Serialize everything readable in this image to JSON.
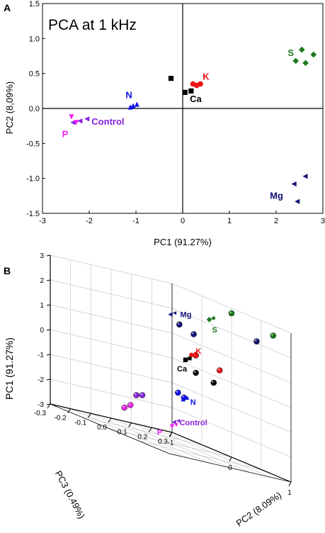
{
  "panels": {
    "a_label": "A",
    "b_label": "B"
  },
  "chart_data": [
    {
      "type": "scatter",
      "title": "PCA at 1 kHz",
      "xlabel": "PC1 (91.27%)",
      "ylabel": "PC2 (8,09%)",
      "xlim": [
        -3,
        3
      ],
      "ylim": [
        -1.5,
        1.5
      ],
      "xticks": [
        "-3",
        "-2",
        "-1",
        "0",
        "1",
        "2",
        "3"
      ],
      "yticks": [
        "-1.5",
        "-1.0",
        "-0.5",
        "0.0",
        "0.5",
        "1.0",
        "1.5"
      ],
      "grid": false,
      "series": [
        {
          "name": "S",
          "color": "#1a7a1a",
          "marker": "diamond",
          "points": [
            [
              2.42,
              0.68
            ],
            [
              2.55,
              0.84
            ],
            [
              2.63,
              0.65
            ],
            [
              2.8,
              0.77
            ]
          ]
        },
        {
          "name": "K",
          "color": "#ee1111",
          "marker": "circle",
          "points": [
            [
              0.22,
              0.35
            ],
            [
              0.3,
              0.33
            ],
            [
              0.38,
              0.35
            ]
          ]
        },
        {
          "name": "Ca",
          "color": "#000000",
          "marker": "square",
          "points": [
            [
              -0.25,
              0.43
            ],
            [
              0.05,
              0.23
            ],
            [
              0.18,
              0.25
            ]
          ]
        },
        {
          "name": "N",
          "color": "#1111ee",
          "marker": "triangle-up",
          "points": [
            [
              -1.12,
              0.02
            ],
            [
              -1.06,
              0.04
            ],
            [
              -0.98,
              0.06
            ]
          ]
        },
        {
          "name": "Control",
          "color": "#8822dd",
          "marker": "triangle-left",
          "points": [
            [
              -2.35,
              -0.2
            ],
            [
              -2.2,
              -0.18
            ],
            [
              -2.05,
              -0.15
            ]
          ]
        },
        {
          "name": "P",
          "color": "#ee22ee",
          "marker": "triangle-down",
          "points": [
            [
              -2.38,
              -0.12
            ],
            [
              -2.28,
              -0.2
            ]
          ]
        },
        {
          "name": "Mg",
          "color": "#111177",
          "marker": "triangle-left",
          "points": [
            [
              2.38,
              -1.08
            ],
            [
              2.45,
              -1.33
            ],
            [
              2.62,
              -0.97
            ]
          ]
        }
      ]
    },
    {
      "type": "scatter",
      "title": "",
      "xlabel": "PC3 (0.49%)",
      "ylabel": "PC1 (91.27%)",
      "zlabel": "PC2 (8.09%)",
      "pc1_range": [
        -3,
        3
      ],
      "pc3_range": [
        -0.3,
        0.3
      ],
      "pc2_range": [
        -1,
        1
      ],
      "pc1_ticks": [
        "-3",
        "-2",
        "-1",
        "0",
        "1",
        "2",
        "3"
      ],
      "pc3_ticks": [
        "-0.3",
        "-0.2",
        "-0.1",
        "0.0",
        "0.1",
        "0.2",
        "0.3"
      ],
      "pc2_ticks": [
        "-1",
        "0",
        "1"
      ],
      "grid": true,
      "series": [
        {
          "name": "Mg",
          "color": "#111177",
          "marker": "triangle-left",
          "points": [
            [
              -0.28,
              0.95,
              2.6
            ]
          ],
          "projections": [
            [
              -0.25,
              1.0,
              2.3
            ],
            [
              0.16,
              0.9,
              2.3
            ],
            [
              -0.15,
              0.9,
              2.0
            ]
          ]
        },
        {
          "name": "S",
          "color": "#1a7a1a",
          "marker": "diamond",
          "points": [
            [
              -0.05,
              0.82,
              2.7
            ]
          ],
          "projections": [
            [
              0.3,
              0.0,
              2.8
            ],
            [
              0.3,
              0.7,
              2.6
            ]
          ]
        },
        {
          "name": "K",
          "color": "#ee1111",
          "marker": "circle",
          "points": [
            [
              0.0,
              0.35,
              0.9
            ]
          ],
          "projections": [
            [
              0.3,
              -0.6,
              0.5
            ],
            [
              0.3,
              -0.2,
              0.3
            ]
          ]
        },
        {
          "name": "Ca",
          "color": "#000000",
          "marker": "square",
          "points": [
            [
              0.0,
              0.25,
              0.6
            ]
          ],
          "projections": [
            [
              0.3,
              -0.6,
              -0.2
            ],
            [
              0.3,
              -0.3,
              -0.3
            ]
          ]
        },
        {
          "name": "N",
          "color": "#1111ee",
          "marker": "triangle-up",
          "points": [
            [
              0.05,
              0.04,
              -1.1
            ]
          ],
          "projections": [
            [
              0.3,
              -0.9,
              -1.3
            ],
            [
              0.3,
              -0.8,
              -1.4
            ]
          ]
        },
        {
          "name": "Control",
          "color": "#8822dd",
          "marker": "triangle-left",
          "points": [
            [
              0.06,
              -0.15,
              -2.2
            ]
          ],
          "projections": [
            [
              0.3,
              -1.5,
              -2.0
            ],
            [
              0.3,
              -1.6,
              -2.1
            ]
          ]
        },
        {
          "name": "P",
          "color": "#ee22ee",
          "marker": "triangle-down",
          "points": [
            [
              0.06,
              -0.18,
              -2.4
            ]
          ],
          "projections": [
            [
              0.3,
              -1.7,
              -2.6
            ],
            [
              0.3,
              -1.8,
              -2.8
            ]
          ]
        }
      ]
    }
  ]
}
